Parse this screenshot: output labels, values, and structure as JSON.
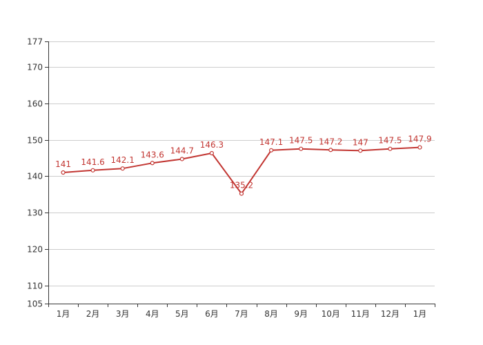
{
  "chart_data": {
    "type": "line",
    "categories": [
      "1月",
      "2月",
      "3月",
      "4月",
      "5月",
      "6月",
      "7月",
      "8月",
      "9月",
      "10月",
      "11月",
      "12月",
      "1月"
    ],
    "series": [
      {
        "values": [
          141,
          141.6,
          142.1,
          143.6,
          144.7,
          146.3,
          135.2,
          147.1,
          147.5,
          147.2,
          147,
          147.5,
          147.9
        ],
        "labels": [
          "141",
          "141.6",
          "142.1",
          "143.6",
          "144.7",
          "146.3",
          "135.2",
          "147.1",
          "147.5",
          "147.2",
          "147",
          "147.5",
          "147.9"
        ]
      }
    ],
    "yticks": [
      105,
      110,
      120,
      130,
      140,
      150,
      160,
      170,
      177
    ],
    "ylim": [
      105,
      177
    ],
    "grid": true,
    "title": "",
    "xlabel": "",
    "ylabel": "",
    "colors": {
      "line": "#c23531",
      "label": "#c23531",
      "grid": "#cccccc",
      "axis": "#333333"
    }
  }
}
